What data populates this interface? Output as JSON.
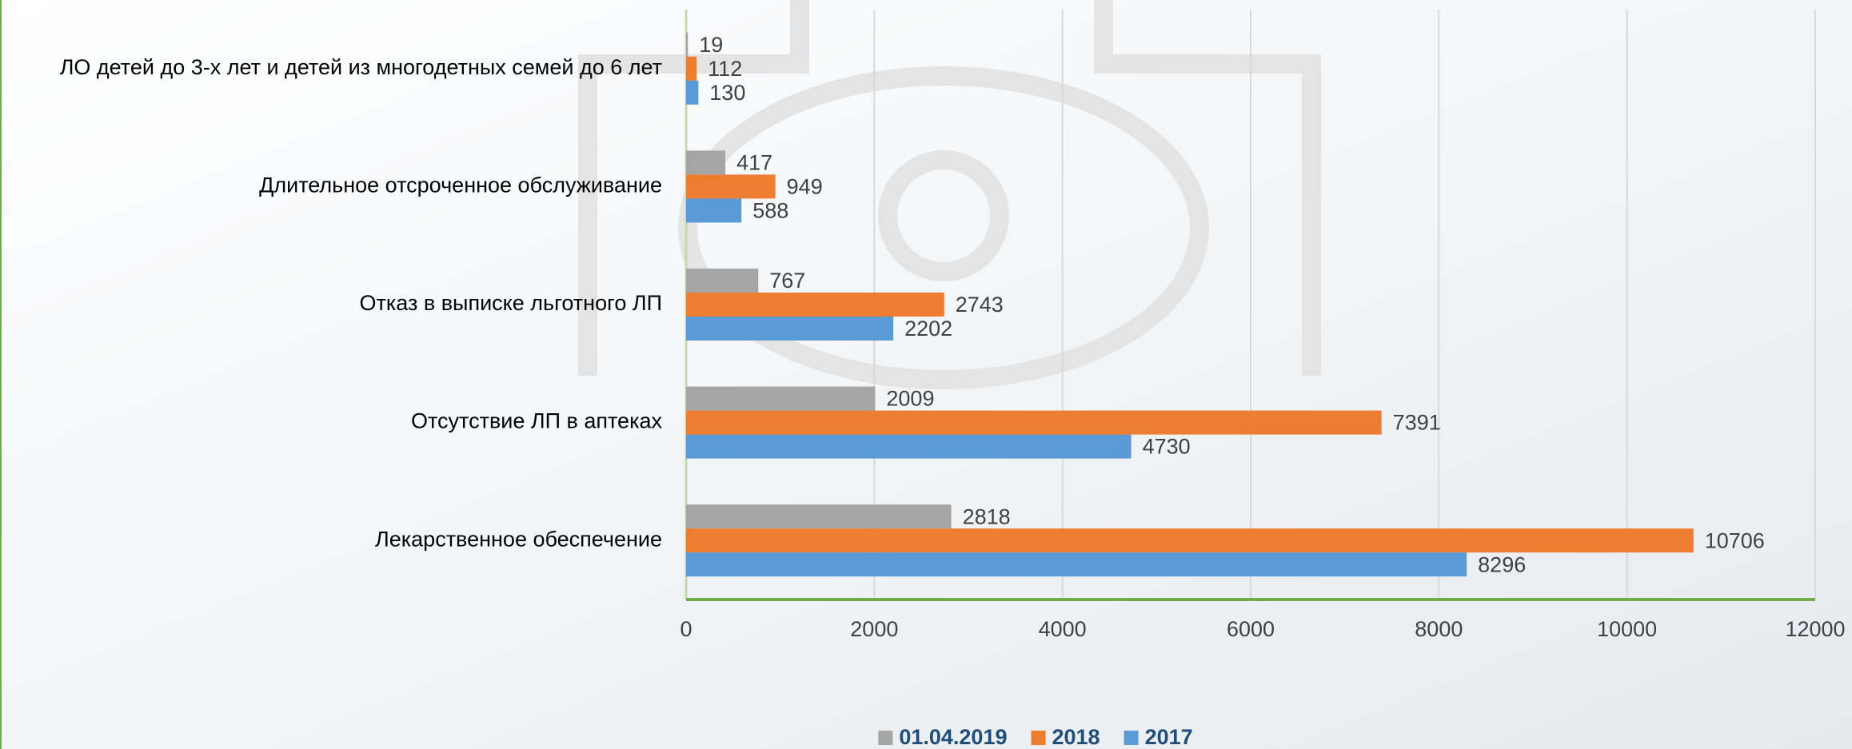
{
  "chart_data": {
    "type": "hbar",
    "categories": [
      "ЛО детей до 3-х лет и детей из многодетных семей до 6 лет",
      "Длительное отсроченное обслуживание",
      "Отказ в выписке льготного ЛП",
      "Отсутствие ЛП в аптеках",
      "Лекарственное обеспечение"
    ],
    "series": [
      {
        "name": "01.04.2019",
        "color": "#a5a5a5",
        "values": [
          19,
          417,
          767,
          2009,
          2818
        ]
      },
      {
        "name": "2018",
        "color": "#ed7d31",
        "values": [
          112,
          949,
          2743,
          7391,
          10706
        ]
      },
      {
        "name": "2017",
        "color": "#5b9bd5",
        "values": [
          130,
          588,
          2202,
          4730,
          8296
        ]
      }
    ],
    "xlim": [
      0,
      12000
    ],
    "xticks": [
      0,
      2000,
      4000,
      6000,
      8000,
      10000,
      12000
    ],
    "grid": true,
    "legend": "bottom"
  }
}
